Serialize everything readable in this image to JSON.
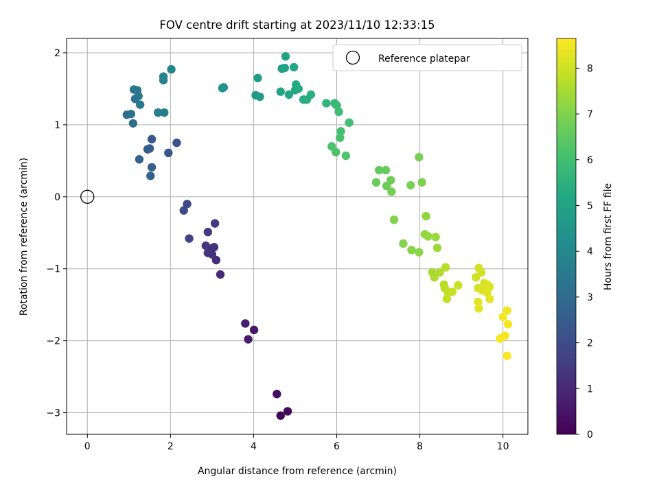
{
  "chart_data": {
    "type": "scatter",
    "title": "FOV centre drift starting at 2023/11/10 12:33:15",
    "xlabel": "Angular distance from reference (arcmin)",
    "ylabel": "Rotation from reference (arcmin)",
    "xlim": [
      -0.5,
      10.6
    ],
    "ylim": [
      -3.3,
      2.2
    ],
    "xticks": [
      0,
      2,
      4,
      6,
      8,
      10
    ],
    "xtick_labels": [
      "0",
      "2",
      "4",
      "6",
      "8",
      "10"
    ],
    "yticks": [
      -3,
      -2,
      -1,
      0,
      1,
      2
    ],
    "ytick_labels": [
      "−3",
      "−2",
      "−1",
      "0",
      "1",
      "2"
    ],
    "grid": true,
    "legend": {
      "placement": "top-right",
      "entries": [
        "Reference platepar"
      ]
    },
    "reference_point": {
      "x": 0,
      "y": 0,
      "label": "Reference platepar"
    },
    "colorbar": {
      "label": "Hours from first FF file",
      "colormap": "viridis",
      "range": [
        0,
        8.65
      ],
      "ticks": [
        0,
        1,
        2,
        3,
        4,
        5,
        6,
        7,
        8
      ],
      "tick_labels": [
        "0",
        "1",
        "2",
        "3",
        "4",
        "5",
        "6",
        "7",
        "8"
      ]
    },
    "points": [
      {
        "x": 4.65,
        "y": -3.04,
        "h": 0.1
      },
      {
        "x": 4.82,
        "y": -2.98,
        "h": 0.2
      },
      {
        "x": 4.56,
        "y": -2.74,
        "h": 0.35
      },
      {
        "x": 4.01,
        "y": -1.85,
        "h": 0.55
      },
      {
        "x": 3.87,
        "y": -1.98,
        "h": 0.65
      },
      {
        "x": 3.8,
        "y": -1.76,
        "h": 0.75
      },
      {
        "x": 3.2,
        "y": -1.08,
        "h": 1.05
      },
      {
        "x": 3.1,
        "y": -0.88,
        "h": 1.1
      },
      {
        "x": 3.05,
        "y": -0.7,
        "h": 1.15
      },
      {
        "x": 3.0,
        "y": -0.8,
        "h": 1.2
      },
      {
        "x": 2.95,
        "y": -0.72,
        "h": 1.25
      },
      {
        "x": 2.9,
        "y": -0.78,
        "h": 1.3
      },
      {
        "x": 2.85,
        "y": -0.68,
        "h": 1.35
      },
      {
        "x": 2.9,
        "y": -0.49,
        "h": 1.45
      },
      {
        "x": 3.07,
        "y": -0.37,
        "h": 1.5
      },
      {
        "x": 2.45,
        "y": -0.58,
        "h": 1.7
      },
      {
        "x": 2.32,
        "y": -0.19,
        "h": 1.85
      },
      {
        "x": 2.4,
        "y": -0.1,
        "h": 1.95
      },
      {
        "x": 2.15,
        "y": 0.75,
        "h": 2.2
      },
      {
        "x": 1.95,
        "y": 0.61,
        "h": 2.3
      },
      {
        "x": 1.55,
        "y": 0.8,
        "h": 2.4
      },
      {
        "x": 1.5,
        "y": 0.67,
        "h": 2.5
      },
      {
        "x": 1.45,
        "y": 0.66,
        "h": 2.55
      },
      {
        "x": 1.25,
        "y": 0.52,
        "h": 2.65
      },
      {
        "x": 1.55,
        "y": 0.41,
        "h": 2.7
      },
      {
        "x": 1.52,
        "y": 0.29,
        "h": 2.75
      },
      {
        "x": 1.1,
        "y": 1.02,
        "h": 3.05
      },
      {
        "x": 0.95,
        "y": 1.14,
        "h": 3.1
      },
      {
        "x": 1.05,
        "y": 1.15,
        "h": 3.15
      },
      {
        "x": 1.15,
        "y": 1.36,
        "h": 3.25
      },
      {
        "x": 1.2,
        "y": 1.48,
        "h": 3.3
      },
      {
        "x": 1.12,
        "y": 1.49,
        "h": 3.35
      },
      {
        "x": 1.23,
        "y": 1.4,
        "h": 3.4
      },
      {
        "x": 1.27,
        "y": 1.28,
        "h": 3.45
      },
      {
        "x": 1.7,
        "y": 1.17,
        "h": 3.6
      },
      {
        "x": 1.85,
        "y": 1.17,
        "h": 3.65
      },
      {
        "x": 1.83,
        "y": 1.62,
        "h": 3.75
      },
      {
        "x": 1.83,
        "y": 1.67,
        "h": 3.8
      },
      {
        "x": 2.02,
        "y": 1.77,
        "h": 3.9
      },
      {
        "x": 3.25,
        "y": 1.51,
        "h": 4.3
      },
      {
        "x": 3.28,
        "y": 1.52,
        "h": 4.35
      },
      {
        "x": 4.05,
        "y": 1.41,
        "h": 4.6
      },
      {
        "x": 4.15,
        "y": 1.39,
        "h": 4.65
      },
      {
        "x": 4.1,
        "y": 1.65,
        "h": 4.7
      },
      {
        "x": 4.68,
        "y": 1.78,
        "h": 4.9
      },
      {
        "x": 4.75,
        "y": 1.79,
        "h": 4.95
      },
      {
        "x": 4.77,
        "y": 1.95,
        "h": 5.0
      },
      {
        "x": 4.65,
        "y": 1.46,
        "h": 5.05
      },
      {
        "x": 4.85,
        "y": 1.42,
        "h": 5.1
      },
      {
        "x": 4.97,
        "y": 1.8,
        "h": 5.15
      },
      {
        "x": 5.0,
        "y": 1.48,
        "h": 5.2
      },
      {
        "x": 5.02,
        "y": 1.56,
        "h": 5.25
      },
      {
        "x": 5.08,
        "y": 1.5,
        "h": 5.3
      },
      {
        "x": 5.2,
        "y": 1.35,
        "h": 5.35
      },
      {
        "x": 5.28,
        "y": 1.35,
        "h": 5.4
      },
      {
        "x": 5.38,
        "y": 1.42,
        "h": 5.45
      },
      {
        "x": 5.75,
        "y": 1.3,
        "h": 5.6
      },
      {
        "x": 5.95,
        "y": 1.3,
        "h": 5.75
      },
      {
        "x": 6.0,
        "y": 1.27,
        "h": 5.8
      },
      {
        "x": 6.05,
        "y": 1.18,
        "h": 5.9
      },
      {
        "x": 6.3,
        "y": 1.03,
        "h": 6.0
      },
      {
        "x": 6.1,
        "y": 0.91,
        "h": 6.05
      },
      {
        "x": 6.08,
        "y": 0.82,
        "h": 6.1
      },
      {
        "x": 5.88,
        "y": 0.7,
        "h": 6.15
      },
      {
        "x": 5.98,
        "y": 0.62,
        "h": 6.2
      },
      {
        "x": 6.22,
        "y": 0.57,
        "h": 6.25
      },
      {
        "x": 7.02,
        "y": 0.37,
        "h": 6.55
      },
      {
        "x": 7.18,
        "y": 0.37,
        "h": 6.6
      },
      {
        "x": 6.95,
        "y": 0.2,
        "h": 6.65
      },
      {
        "x": 7.2,
        "y": 0.15,
        "h": 6.7
      },
      {
        "x": 7.3,
        "y": 0.23,
        "h": 6.75
      },
      {
        "x": 7.32,
        "y": 0.07,
        "h": 6.8
      },
      {
        "x": 7.98,
        "y": 0.55,
        "h": 6.85
      },
      {
        "x": 7.78,
        "y": 0.16,
        "h": 6.9
      },
      {
        "x": 8.05,
        "y": 0.2,
        "h": 6.95
      },
      {
        "x": 7.38,
        "y": -0.32,
        "h": 7.0
      },
      {
        "x": 7.6,
        "y": -0.65,
        "h": 7.05
      },
      {
        "x": 7.8,
        "y": -0.74,
        "h": 7.1
      },
      {
        "x": 7.98,
        "y": -0.77,
        "h": 7.15
      },
      {
        "x": 8.15,
        "y": -0.27,
        "h": 7.2
      },
      {
        "x": 8.12,
        "y": -0.52,
        "h": 7.25
      },
      {
        "x": 8.2,
        "y": -0.55,
        "h": 7.3
      },
      {
        "x": 8.38,
        "y": -0.56,
        "h": 7.35
      },
      {
        "x": 8.42,
        "y": -0.71,
        "h": 7.4
      },
      {
        "x": 8.3,
        "y": -1.05,
        "h": 7.5
      },
      {
        "x": 8.35,
        "y": -1.12,
        "h": 7.55
      },
      {
        "x": 8.48,
        "y": -1.05,
        "h": 7.6
      },
      {
        "x": 8.58,
        "y": -1.22,
        "h": 7.65
      },
      {
        "x": 8.62,
        "y": -0.98,
        "h": 7.7
      },
      {
        "x": 8.6,
        "y": -1.27,
        "h": 7.75
      },
      {
        "x": 8.68,
        "y": -1.33,
        "h": 7.8
      },
      {
        "x": 8.65,
        "y": -1.42,
        "h": 7.85
      },
      {
        "x": 8.78,
        "y": -1.32,
        "h": 7.9
      },
      {
        "x": 8.92,
        "y": -1.23,
        "h": 7.95
      },
      {
        "x": 9.35,
        "y": -1.12,
        "h": 8.0
      },
      {
        "x": 9.42,
        "y": -0.99,
        "h": 8.05
      },
      {
        "x": 9.48,
        "y": -1.05,
        "h": 8.1
      },
      {
        "x": 9.4,
        "y": -1.27,
        "h": 8.12
      },
      {
        "x": 9.55,
        "y": -1.2,
        "h": 8.15
      },
      {
        "x": 9.62,
        "y": -1.22,
        "h": 8.18
      },
      {
        "x": 9.5,
        "y": -1.3,
        "h": 8.2
      },
      {
        "x": 9.68,
        "y": -1.25,
        "h": 8.22
      },
      {
        "x": 9.62,
        "y": -1.33,
        "h": 8.25
      },
      {
        "x": 9.4,
        "y": -1.46,
        "h": 8.28
      },
      {
        "x": 9.42,
        "y": -1.55,
        "h": 8.3
      },
      {
        "x": 9.68,
        "y": -1.42,
        "h": 8.32
      },
      {
        "x": 10.1,
        "y": -1.58,
        "h": 8.45
      },
      {
        "x": 10.0,
        "y": -1.67,
        "h": 8.5
      },
      {
        "x": 10.12,
        "y": -1.77,
        "h": 8.52
      },
      {
        "x": 9.93,
        "y": -1.97,
        "h": 8.55
      },
      {
        "x": 10.05,
        "y": -1.93,
        "h": 8.58
      },
      {
        "x": 10.1,
        "y": -2.21,
        "h": 8.62
      }
    ]
  }
}
